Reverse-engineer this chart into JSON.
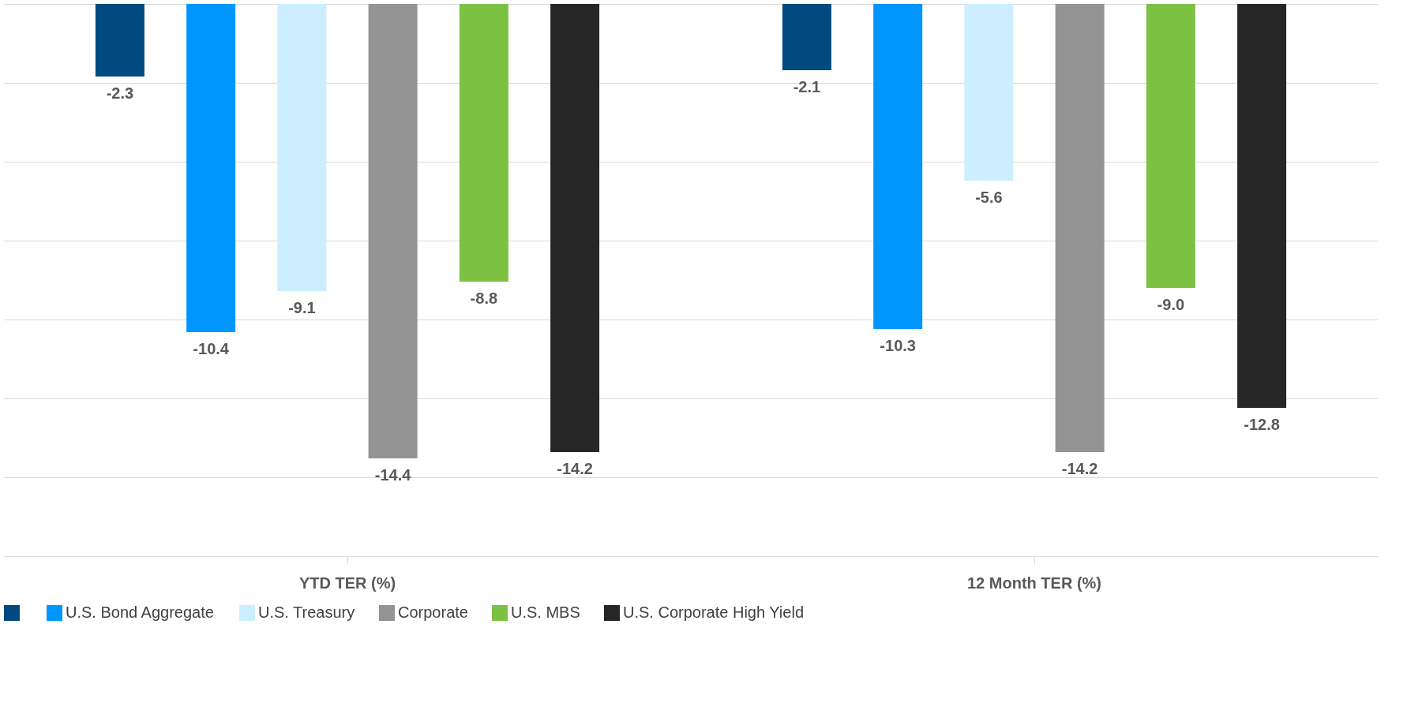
{
  "chart_data": {
    "type": "bar",
    "categories": [
      "YTD TER (%)",
      "12 Month TER (%)"
    ],
    "series": [
      {
        "color": "#004a80",
        "values": [
          -2.3,
          -2.1
        ],
        "value_labels": [
          "-2.3",
          "-2.1"
        ]
      },
      {
        "name": "U.S. Bond Aggregate",
        "color": "#0096ff",
        "values": [
          -10.4,
          -10.3
        ],
        "value_labels": [
          "-10.4",
          "-10.3"
        ]
      },
      {
        "name": "U.S. Treasury",
        "color": "#cceeff",
        "values": [
          -9.1,
          -5.6
        ],
        "value_labels": [
          "-9.1",
          "-5.6"
        ]
      },
      {
        "name": "Corporate",
        "color": "#939393",
        "values": [
          -14.4,
          -14.2
        ],
        "value_labels": [
          "-14.4",
          "-14.2"
        ]
      },
      {
        "name": "U.S. MBS",
        "color": "#7dc142",
        "values": [
          -8.8,
          -9.0
        ],
        "value_labels": [
          "-8.8",
          "-9.0"
        ]
      },
      {
        "name": "U.S. Corporate High Yield",
        "color": "#262626",
        "values": [
          -14.2,
          -12.8
        ],
        "value_labels": [
          "-14.2",
          "-12.8"
        ]
      }
    ],
    "ylim": [
      -17.5,
      0
    ],
    "yticks": [
      {
        "value": 0,
        "label": null
      },
      {
        "value": -2.5,
        "label": null
      },
      {
        "value": -5,
        "label": null
      },
      {
        "value": -7.5,
        "label": null
      },
      {
        "value": -10,
        "label": null
      },
      {
        "value": -12.5,
        "label": null
      },
      {
        "value": -15,
        "label": null
      },
      {
        "value": -17.5,
        "label": null
      }
    ],
    "tick_labels": "x",
    "grid": "y",
    "legend": "bottom"
  }
}
